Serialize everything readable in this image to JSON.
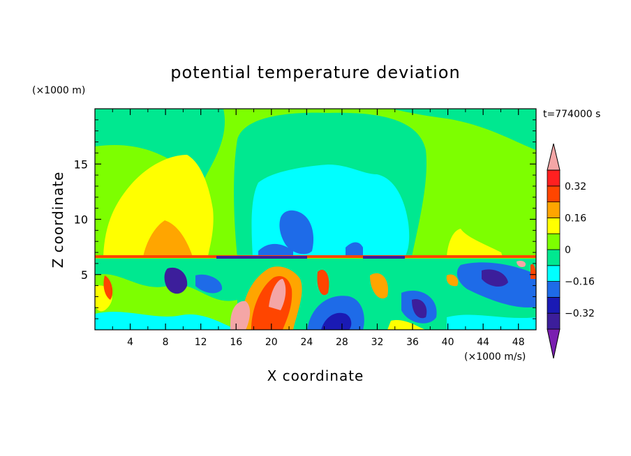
{
  "chart_data": {
    "type": "heatmap",
    "title": "potential temperature deviation",
    "xlabel": "X coordinate",
    "ylabel": "Z coordinate",
    "x_unit_label": "(×1000 m/s)",
    "y_unit_label": "(×1000 m)",
    "time_label": "t=774000 s",
    "xlim": [
      0,
      50
    ],
    "ylim": [
      0,
      20
    ],
    "x_ticks": [
      4,
      8,
      12,
      16,
      20,
      24,
      28,
      32,
      36,
      40,
      44,
      48
    ],
    "y_ticks": [
      5,
      10,
      15
    ],
    "colorbar": {
      "levels": [
        -0.4,
        -0.32,
        -0.24,
        -0.16,
        -0.08,
        0,
        0.08,
        0.16,
        0.24,
        0.32,
        0.4
      ],
      "tick_labels": [
        "0.32",
        "0.16",
        "0",
        "−0.16",
        "−0.32"
      ],
      "tick_values": [
        0.32,
        0.16,
        0,
        -0.16,
        -0.32
      ],
      "colors": [
        "#7a1fb0",
        "#3c1e9b",
        "#1a1ab4",
        "#1e6be8",
        "#00ffff",
        "#00e890",
        "#7dff00",
        "#ffff00",
        "#ffa500",
        "#ff4500",
        "#ff2020",
        "#f4a6a6"
      ]
    }
  }
}
